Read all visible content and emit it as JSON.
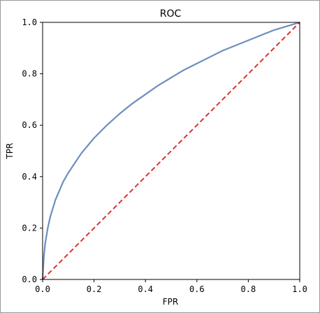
{
  "chart_data": {
    "type": "line",
    "title": "ROC",
    "xlabel": "FPR",
    "ylabel": "TPR",
    "xlim": [
      0,
      1
    ],
    "ylim": [
      0,
      1
    ],
    "xticks": [
      "0.0",
      "0.2",
      "0.4",
      "0.6",
      "0.8",
      "1.0"
    ],
    "yticks": [
      "0.0",
      "0.2",
      "0.4",
      "0.6",
      "0.8",
      "1.0"
    ],
    "grid": false,
    "legend": "none",
    "series": [
      {
        "style": "solid",
        "color": "#6b8fbd",
        "x": [
          0.0,
          0.005,
          0.01,
          0.02,
          0.03,
          0.05,
          0.08,
          0.1,
          0.15,
          0.2,
          0.25,
          0.3,
          0.35,
          0.4,
          0.45,
          0.5,
          0.55,
          0.6,
          0.65,
          0.7,
          0.75,
          0.8,
          0.85,
          0.9,
          0.95,
          1.0
        ],
        "y": [
          0.0,
          0.09,
          0.14,
          0.2,
          0.245,
          0.31,
          0.38,
          0.415,
          0.49,
          0.55,
          0.6,
          0.645,
          0.685,
          0.72,
          0.755,
          0.785,
          0.815,
          0.84,
          0.865,
          0.89,
          0.91,
          0.93,
          0.95,
          0.97,
          0.985,
          1.0
        ]
      },
      {
        "style": "dashed",
        "color": "#e03030",
        "x": [
          0.0,
          1.0
        ],
        "y": [
          0.0,
          1.0
        ]
      }
    ]
  }
}
